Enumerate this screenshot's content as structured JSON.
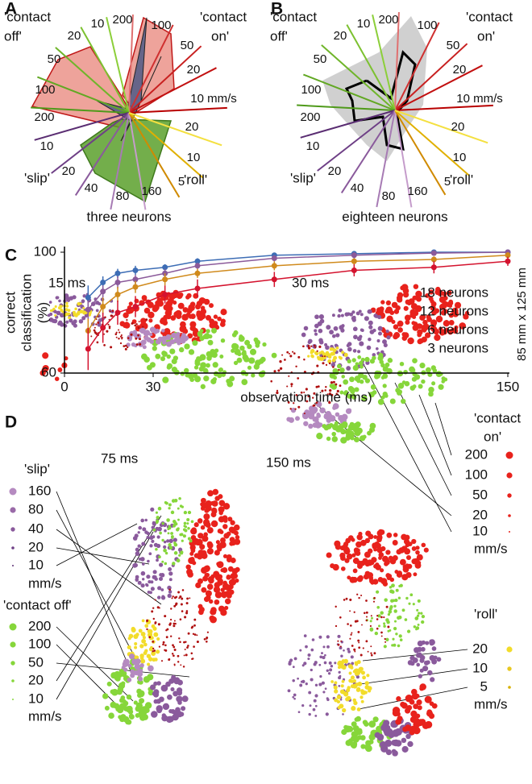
{
  "panel_a": {
    "letter": "A",
    "title": "three neurons",
    "groups": [
      {
        "name": [
          "'contact",
          "on'"
        ],
        "spokes": [
          "10 mm/s",
          "20",
          "50",
          "100",
          "200"
        ]
      },
      {
        "name": [
          "'contact",
          "off'"
        ],
        "spokes": [
          "10",
          "20",
          "50",
          "100",
          "200"
        ]
      },
      {
        "name": [
          "'slip'"
        ],
        "spokes": [
          "10",
          "20",
          "40",
          "80",
          "160"
        ]
      },
      {
        "name": [
          "'roll'"
        ],
        "spokes": [
          "5",
          "10",
          "20"
        ]
      }
    ]
  },
  "panel_b": {
    "letter": "B",
    "title": "eighteen neurons",
    "groups": [
      {
        "name": [
          "'contact",
          "on'"
        ],
        "spokes": [
          "10 mm/s",
          "20",
          "50",
          "100",
          "200"
        ]
      },
      {
        "name": [
          "'contact",
          "off'"
        ],
        "spokes": [
          "10",
          "20",
          "50",
          "100",
          "200"
        ]
      },
      {
        "name": [
          "'slip'"
        ],
        "spokes": [
          "10",
          "20",
          "40",
          "80",
          "160"
        ]
      },
      {
        "name": [
          "'roll'"
        ],
        "spokes": [
          "5",
          "10",
          "20"
        ]
      }
    ]
  },
  "chart_data": {
    "type": "line",
    "panel_label": "C",
    "xlabel": "observation time (ms)",
    "ylabel": [
      "correct",
      "classification",
      "(%)"
    ],
    "annotation": "85 mm x 125 mm",
    "xlim": [
      0,
      150
    ],
    "ylim": [
      60,
      100
    ],
    "xticks": [
      0,
      30,
      150
    ],
    "yticks": [
      60,
      100
    ],
    "x": [
      8,
      13,
      18,
      24,
      34,
      45,
      71,
      98,
      125,
      150
    ],
    "series": [
      {
        "name": "18 neurons",
        "color": "#3d6db5",
        "values": [
          85,
          90,
          93,
          94,
          95,
          97,
          99,
          99.5,
          100,
          100
        ],
        "errors": [
          4,
          2,
          1.5,
          1.5,
          1,
          1,
          0.8,
          0.5,
          0.5,
          0.5
        ]
      },
      {
        "name": "12 neurons",
        "color": "#8b5a9a",
        "values": [
          81,
          87,
          90,
          91,
          93,
          95.5,
          98,
          99,
          99.7,
          100
        ],
        "errors": [
          3,
          2,
          2,
          1.5,
          1.5,
          1,
          1,
          1,
          0.8,
          0.5
        ]
      },
      {
        "name": "6 neurons",
        "color": "#d08a1c",
        "values": [
          74,
          82,
          86,
          88.5,
          91,
          93,
          95.5,
          97,
          97.6,
          99
        ],
        "errors": [
          4,
          3,
          2.5,
          2,
          2,
          1.5,
          1.5,
          1,
          1,
          1
        ]
      },
      {
        "name": "3 neurons",
        "color": "#d4132e",
        "values": [
          68,
          75,
          80,
          82,
          86,
          88,
          91,
          94,
          95,
          97
        ],
        "errors": [
          7,
          5,
          4,
          3.5,
          3,
          3,
          2.5,
          2,
          2,
          1.5
        ]
      }
    ]
  },
  "panel_d": {
    "letter": "D",
    "times": [
      "15 ms",
      "30 ms",
      "75 ms",
      "150 ms"
    ],
    "legends": [
      {
        "title": [
          "'contact",
          "on'"
        ],
        "items": [
          "200",
          "100",
          "50",
          "20",
          "10"
        ],
        "unit": "mm/s"
      },
      {
        "title": [
          "'slip'"
        ],
        "items": [
          "160",
          "80",
          "40",
          "20",
          "10"
        ],
        "unit": "mm/s"
      },
      {
        "title": [
          "'contact off'"
        ],
        "items": [
          "200",
          "100",
          "50",
          "20",
          "10"
        ],
        "unit": "mm/s"
      },
      {
        "title": [
          "'roll'"
        ],
        "items": [
          "20",
          "10",
          "5"
        ],
        "unit": "mm/s"
      }
    ]
  }
}
